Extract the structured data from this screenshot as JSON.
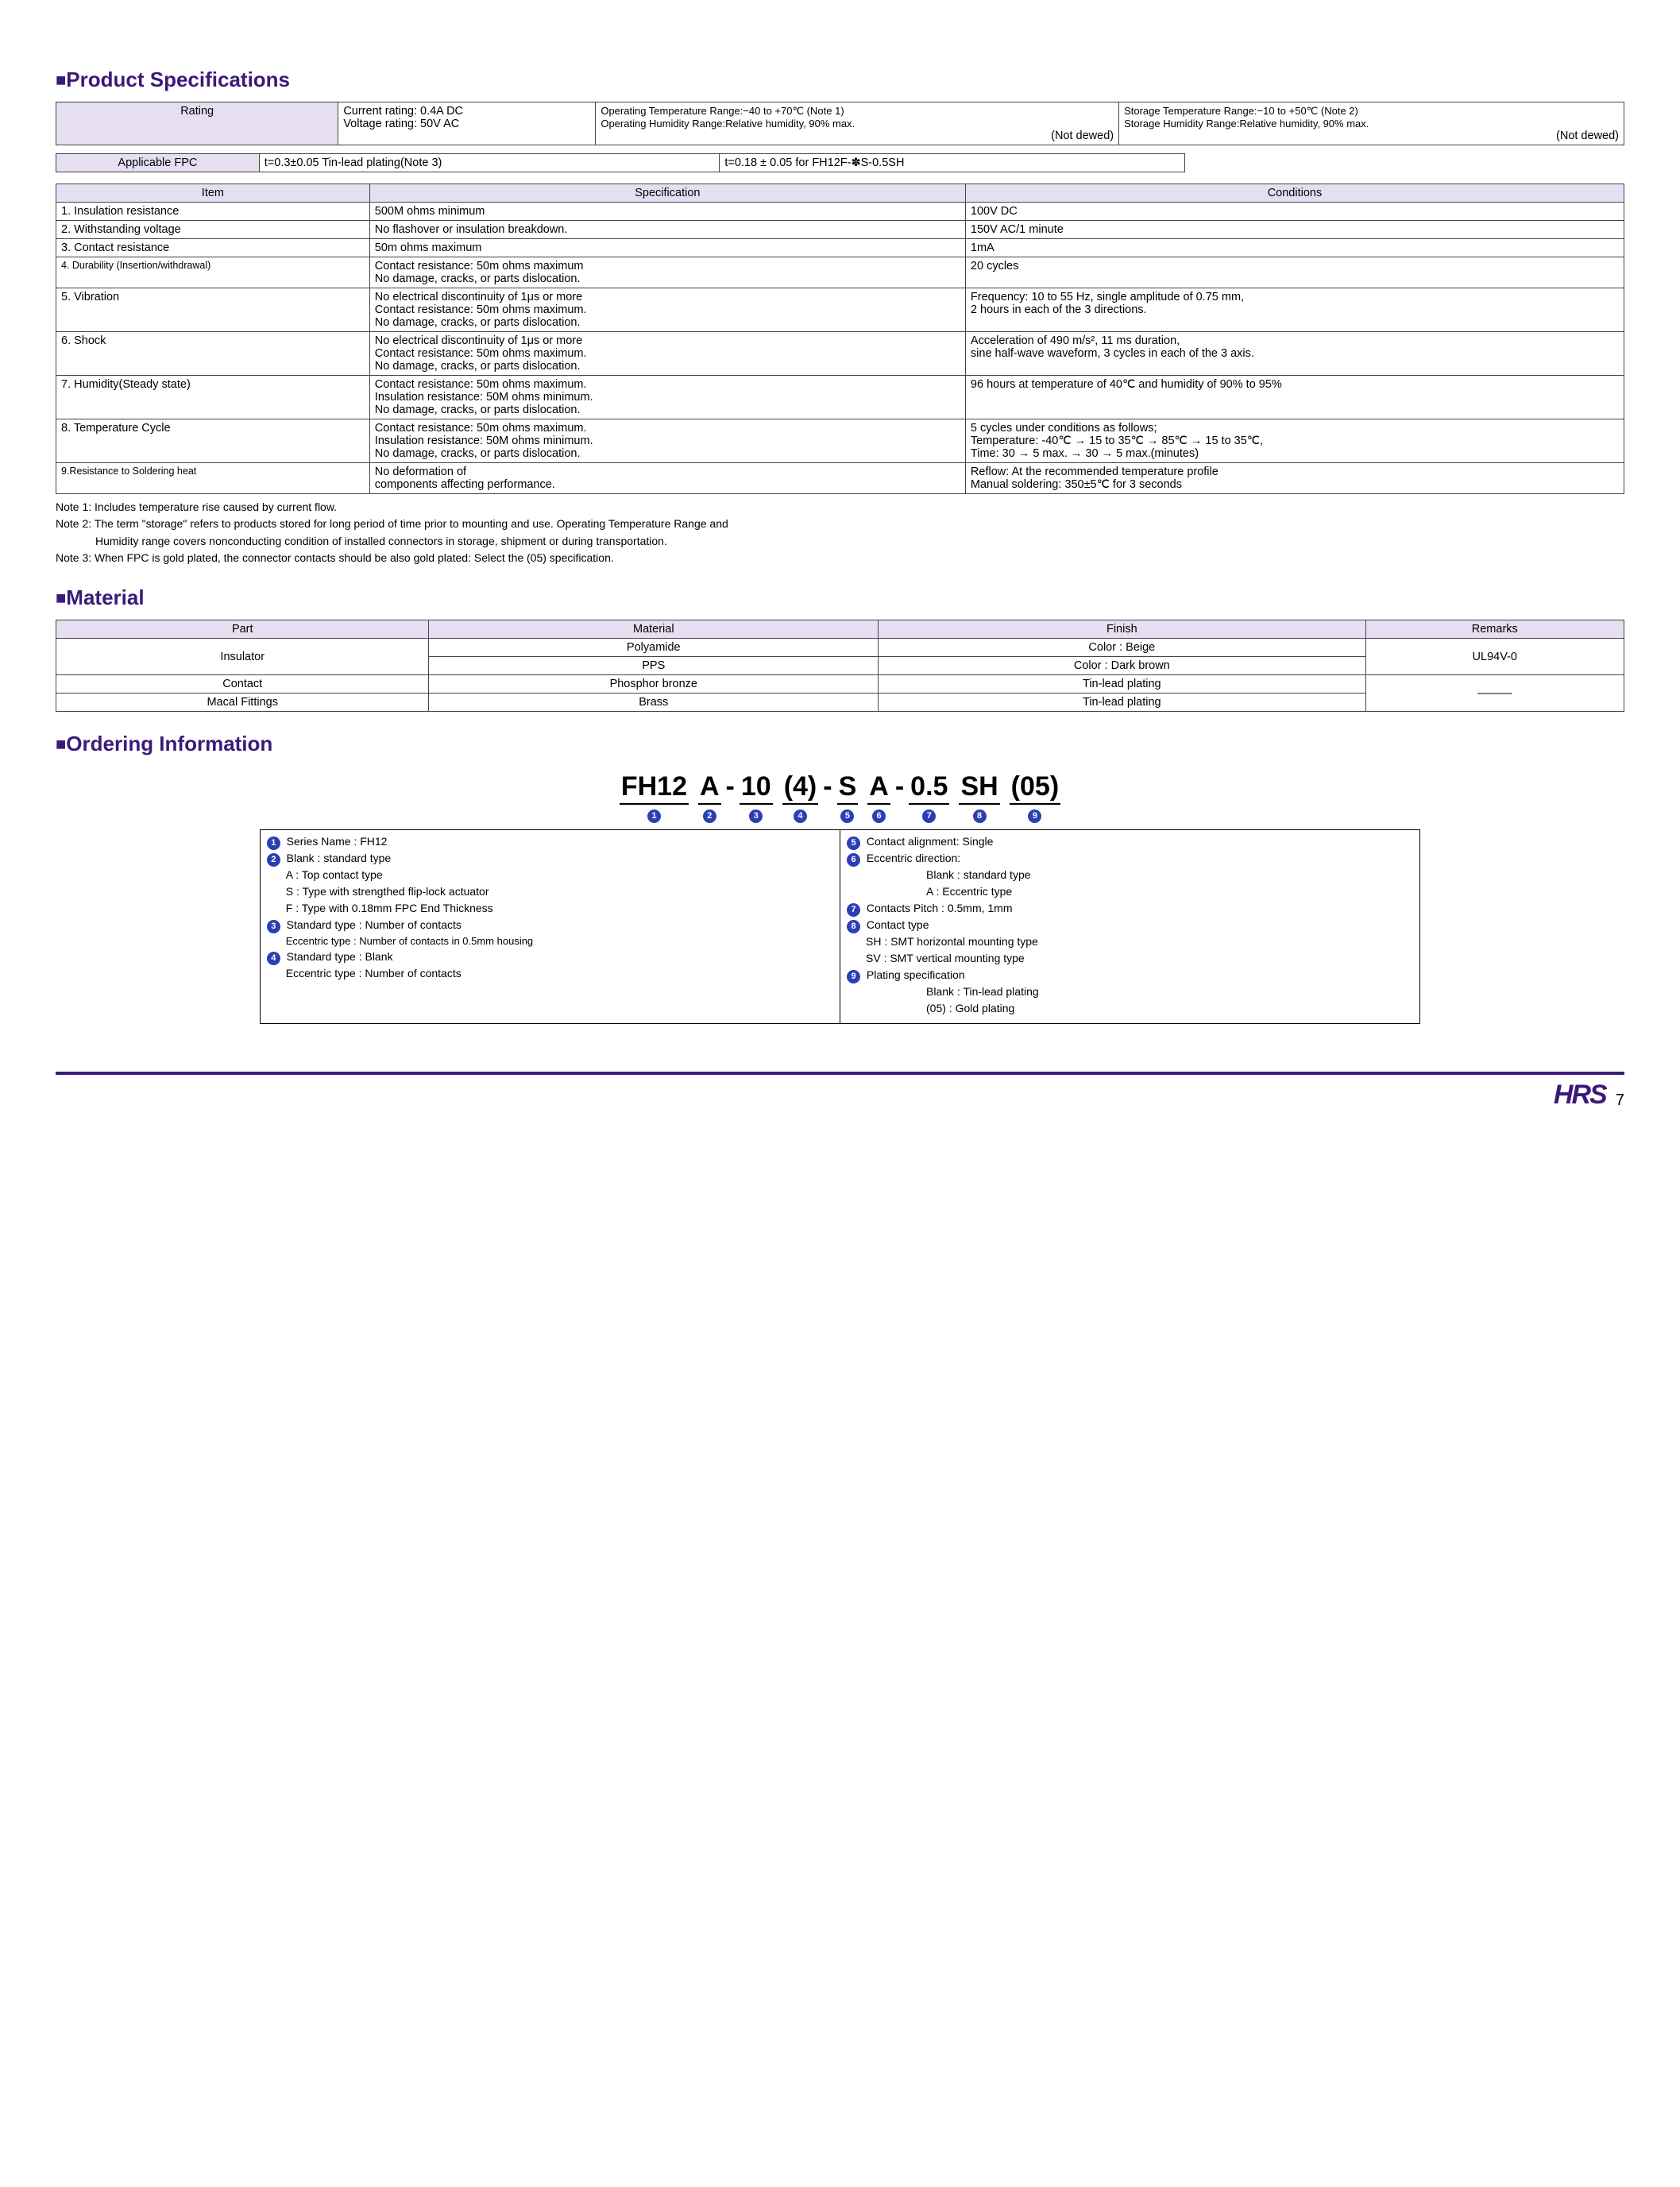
{
  "colors": {
    "brand": "#3b1a7a",
    "header_bg": "#e6dff2",
    "circle": "#2b3fb5"
  },
  "sections": {
    "spec_title": "Product Specifications",
    "material_title": "Material",
    "ordering_title": "Ordering Information"
  },
  "rating": {
    "label": "Rating",
    "col2_line1": "Current rating: 0.4A DC",
    "col2_line2": "Voltage rating: 50V AC",
    "col3_line1": "Operating Temperature Range:−40 to +70℃ (Note 1)",
    "col3_line2": "Operating Humidity Range:Relative humidity, 90% max.",
    "col3_line3": "(Not dewed)",
    "col4_line1": "Storage Temperature Range:−10 to +50℃ (Note 2)",
    "col4_line2": "Storage Humidity Range:Relative humidity, 90% max.",
    "col4_line3": "(Not dewed)"
  },
  "fpc": {
    "label": "Applicable FPC",
    "c1": "t=0.3±0.05  Tin-lead plating(Note 3)",
    "c2": "t=0.18 ± 0.05 for FH12F-✽S-0.5SH"
  },
  "spec_headers": {
    "item": "Item",
    "spec": "Specification",
    "cond": "Conditions"
  },
  "specs": [
    {
      "item": "1. Insulation resistance",
      "spec": "500M ohms minimum",
      "cond": "100V DC"
    },
    {
      "item": "2. Withstanding voltage",
      "spec": "No flashover or insulation breakdown.",
      "cond": "150V AC/1 minute"
    },
    {
      "item": "3. Contact resistance",
      "spec": "50m ohms maximum",
      "cond": "1mA"
    },
    {
      "item": "4. Durability (Insertion/withdrawal)",
      "item_small": true,
      "spec": "Contact resistance: 50m ohms maximum\nNo damage, cracks, or parts dislocation.",
      "cond": "20 cycles"
    },
    {
      "item": "5. Vibration",
      "spec": "No electrical discontinuity of 1μs or more\nContact resistance: 50m ohms maximum.\nNo damage, cracks, or parts dislocation.",
      "cond": "Frequency: 10 to 55 Hz, single amplitude of 0.75 mm,\n2 hours in each of the 3 directions."
    },
    {
      "item": "6. Shock",
      "spec": "No electrical discontinuity of 1μs or more\nContact resistance: 50m ohms maximum.\nNo damage, cracks, or parts dislocation.",
      "cond": "Acceleration of 490 m/s², 11 ms duration,\nsine half-wave waveform, 3 cycles in each of the 3 axis."
    },
    {
      "item": "7. Humidity(Steady state)",
      "spec": "Contact resistance: 50m ohms maximum.\nInsulation resistance: 50M ohms minimum.\nNo damage, cracks, or parts dislocation.",
      "cond": "96 hours at temperature of 40℃ and humidity of 90% to 95%"
    },
    {
      "item": "8. Temperature Cycle",
      "spec": "Contact resistance: 50m ohms maximum.\nInsulation resistance: 50M ohms minimum.\nNo damage, cracks, or parts dislocation.",
      "cond": "5 cycles under conditions as follows;\nTemperature: -40℃ → 15 to 35℃ → 85℃ → 15 to 35℃,\nTime: 30 → 5 max. → 30 → 5 max.(minutes)"
    },
    {
      "item": "9.Resistance to Soldering heat",
      "item_small": true,
      "spec": "No deformation of\ncomponents affecting performance.",
      "cond": "Reflow: At the recommended temperature profile\nManual soldering: 350±5℃ for 3 seconds"
    }
  ],
  "notes": [
    "Note 1: Includes temperature rise caused by current flow.",
    "Note 2: The term \"storage\" refers to products stored for long period of time prior to mounting and use. Operating Temperature Range and",
    "Humidity range covers nonconducting condition of installed connectors in storage, shipment or during transportation.",
    "Note 3: When FPC is gold plated, the connector contacts should be also gold plated: Select the (05) specification."
  ],
  "material": {
    "headers": {
      "part": "Part",
      "mat": "Material",
      "fin": "Finish",
      "rem": "Remarks"
    },
    "r1": {
      "part": "Insulator",
      "mat": "Polyamide",
      "fin": "Color : Beige"
    },
    "r2": {
      "mat": "PPS",
      "fin": "Color : Dark brown",
      "rem": "UL94V-0"
    },
    "r3": {
      "part": "Contact",
      "mat": "Phosphor bronze",
      "fin": "Tin-lead plating"
    },
    "r4": {
      "part": "Macal Fittings",
      "mat": "Brass",
      "fin": "Tin-lead plating",
      "rem": "———"
    }
  },
  "ordering": {
    "parts": [
      "FH12",
      "A",
      "10",
      "(4)",
      "S",
      "A",
      "0.5",
      "SH",
      "(05)"
    ],
    "nums": [
      "1",
      "2",
      "3",
      "4",
      "5",
      "6",
      "7",
      "8",
      "9"
    ],
    "left": {
      "l1": "Series Name     : FH12",
      "l2": "Blank : standard type",
      "l2a": "A : Top contact type",
      "l2b": "S : Type with strengthed flip-lock actuator",
      "l2c": "F : Type with 0.18mm FPC End Thickness",
      "l3": "Standard type    : Number of contacts",
      "l3a": "Eccentric type   : Number of contacts in 0.5mm housing",
      "l4": "Standard type    : Blank",
      "l4a": "Eccentric type   : Number of contacts"
    },
    "right": {
      "l5": "Contact alignment: Single",
      "l6": "Eccentric direction:",
      "l6a": "Blank : standard type",
      "l6b": "A : Eccentric type",
      "l7": "Contacts Pitch    : 0.5mm, 1mm",
      "l8": "Contact type",
      "l8a": "SH : SMT horizontal mounting type",
      "l8b": "SV : SMT vertical mounting type",
      "l9": "Plating specification",
      "l9a": "Blank : Tin-lead plating",
      "l9b": "(05)    : Gold plating"
    }
  },
  "footer": {
    "logo": "HRS",
    "page": "7"
  }
}
